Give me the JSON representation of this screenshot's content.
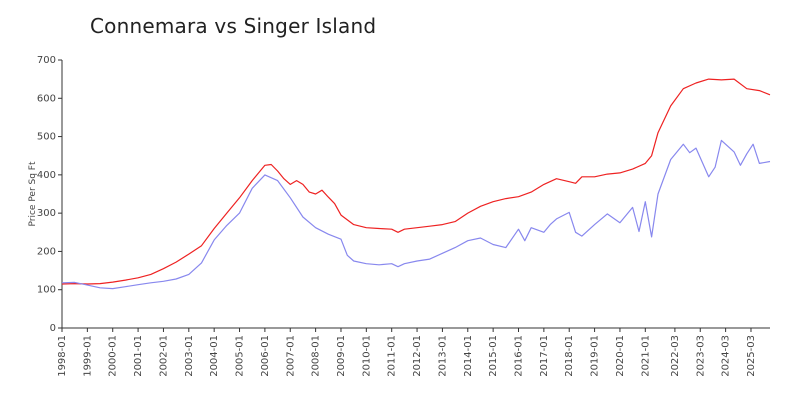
{
  "title": "Connemara vs Singer Island",
  "chart_data": {
    "type": "line",
    "title": "Connemara vs Singer Island",
    "xlabel": "",
    "ylabel": "Price Per Sq Ft",
    "ylim": [
      0,
      700
    ],
    "yticks": [
      0,
      100,
      200,
      300,
      400,
      500,
      600,
      700
    ],
    "xlim": [
      "1998-01",
      "2025-12"
    ],
    "xticks": [
      "1998-01",
      "1999-01",
      "2000-01",
      "2001-01",
      "2002-01",
      "2003-01",
      "2004-01",
      "2005-01",
      "2006-01",
      "2007-01",
      "2008-01",
      "2009-01",
      "2010-01",
      "2011-01",
      "2012-01",
      "2013-01",
      "2014-01",
      "2015-01",
      "2016-01",
      "2017-01",
      "2018-01",
      "2019-01",
      "2020-01",
      "2021-01",
      "2022-03",
      "2023-03",
      "2024-03",
      "2025-03"
    ],
    "grid": false,
    "legend": "none",
    "series": [
      {
        "color": "#ee2222",
        "points": [
          [
            "1998-01",
            115
          ],
          [
            "1998-07",
            116
          ],
          [
            "1999-01",
            115
          ],
          [
            "1999-07",
            116
          ],
          [
            "2000-01",
            120
          ],
          [
            "2000-07",
            125
          ],
          [
            "2001-01",
            131
          ],
          [
            "2001-07",
            140
          ],
          [
            "2002-01",
            155
          ],
          [
            "2002-07",
            172
          ],
          [
            "2003-01",
            193
          ],
          [
            "2003-07",
            215
          ],
          [
            "2004-01",
            260
          ],
          [
            "2004-07",
            300
          ],
          [
            "2005-01",
            340
          ],
          [
            "2005-07",
            385
          ],
          [
            "2006-01",
            425
          ],
          [
            "2006-04",
            427
          ],
          [
            "2006-07",
            410
          ],
          [
            "2006-10",
            390
          ],
          [
            "2007-01",
            375
          ],
          [
            "2007-04",
            385
          ],
          [
            "2007-07",
            375
          ],
          [
            "2007-10",
            355
          ],
          [
            "2008-01",
            350
          ],
          [
            "2008-04",
            360
          ],
          [
            "2008-07",
            342
          ],
          [
            "2008-10",
            325
          ],
          [
            "2009-01",
            295
          ],
          [
            "2009-07",
            270
          ],
          [
            "2010-01",
            262
          ],
          [
            "2010-07",
            260
          ],
          [
            "2011-01",
            258
          ],
          [
            "2011-04",
            250
          ],
          [
            "2011-07",
            258
          ],
          [
            "2012-01",
            262
          ],
          [
            "2012-07",
            266
          ],
          [
            "2013-01",
            270
          ],
          [
            "2013-07",
            278
          ],
          [
            "2014-01",
            300
          ],
          [
            "2014-07",
            318
          ],
          [
            "2015-01",
            330
          ],
          [
            "2015-07",
            338
          ],
          [
            "2016-01",
            343
          ],
          [
            "2016-07",
            355
          ],
          [
            "2017-01",
            375
          ],
          [
            "2017-07",
            390
          ],
          [
            "2018-01",
            382
          ],
          [
            "2018-04",
            378
          ],
          [
            "2018-07",
            395
          ],
          [
            "2019-01",
            395
          ],
          [
            "2019-07",
            402
          ],
          [
            "2020-01",
            405
          ],
          [
            "2020-07",
            415
          ],
          [
            "2021-01",
            430
          ],
          [
            "2021-04",
            450
          ],
          [
            "2021-07",
            510
          ],
          [
            "2022-01",
            580
          ],
          [
            "2022-07",
            625
          ],
          [
            "2023-01",
            640
          ],
          [
            "2023-07",
            650
          ],
          [
            "2024-01",
            648
          ],
          [
            "2024-07",
            650
          ],
          [
            "2025-01",
            625
          ],
          [
            "2025-07",
            620
          ],
          [
            "2025-12",
            609
          ]
        ]
      },
      {
        "color": "#8888ee",
        "points": [
          [
            "1998-01",
            118
          ],
          [
            "1998-07",
            119
          ],
          [
            "1999-01",
            112
          ],
          [
            "1999-07",
            105
          ],
          [
            "2000-01",
            103
          ],
          [
            "2000-07",
            108
          ],
          [
            "2001-01",
            113
          ],
          [
            "2001-07",
            118
          ],
          [
            "2002-01",
            122
          ],
          [
            "2002-07",
            128
          ],
          [
            "2003-01",
            140
          ],
          [
            "2003-07",
            170
          ],
          [
            "2004-01",
            230
          ],
          [
            "2004-07",
            268
          ],
          [
            "2005-01",
            300
          ],
          [
            "2005-07",
            365
          ],
          [
            "2006-01",
            400
          ],
          [
            "2006-07",
            385
          ],
          [
            "2007-01",
            340
          ],
          [
            "2007-07",
            290
          ],
          [
            "2008-01",
            262
          ],
          [
            "2008-07",
            245
          ],
          [
            "2009-01",
            232
          ],
          [
            "2009-04",
            190
          ],
          [
            "2009-07",
            175
          ],
          [
            "2010-01",
            168
          ],
          [
            "2010-07",
            165
          ],
          [
            "2011-01",
            168
          ],
          [
            "2011-04",
            160
          ],
          [
            "2011-07",
            168
          ],
          [
            "2012-01",
            175
          ],
          [
            "2012-07",
            180
          ],
          [
            "2013-01",
            195
          ],
          [
            "2013-07",
            210
          ],
          [
            "2014-01",
            228
          ],
          [
            "2014-07",
            235
          ],
          [
            "2015-01",
            218
          ],
          [
            "2015-07",
            210
          ],
          [
            "2016-01",
            258
          ],
          [
            "2016-04",
            228
          ],
          [
            "2016-07",
            262
          ],
          [
            "2017-01",
            250
          ],
          [
            "2017-04",
            270
          ],
          [
            "2017-07",
            285
          ],
          [
            "2018-01",
            302
          ],
          [
            "2018-04",
            250
          ],
          [
            "2018-07",
            240
          ],
          [
            "2019-01",
            270
          ],
          [
            "2019-07",
            298
          ],
          [
            "2020-01",
            275
          ],
          [
            "2020-07",
            315
          ],
          [
            "2020-10",
            252
          ],
          [
            "2021-01",
            330
          ],
          [
            "2021-04",
            238
          ],
          [
            "2021-07",
            350
          ],
          [
            "2022-01",
            440
          ],
          [
            "2022-07",
            480
          ],
          [
            "2022-10",
            458
          ],
          [
            "2023-01",
            470
          ],
          [
            "2023-07",
            395
          ],
          [
            "2023-10",
            420
          ],
          [
            "2024-01",
            490
          ],
          [
            "2024-07",
            460
          ],
          [
            "2024-10",
            425
          ],
          [
            "2025-01",
            455
          ],
          [
            "2025-04",
            480
          ],
          [
            "2025-07",
            430
          ],
          [
            "2025-12",
            435
          ]
        ]
      }
    ]
  }
}
